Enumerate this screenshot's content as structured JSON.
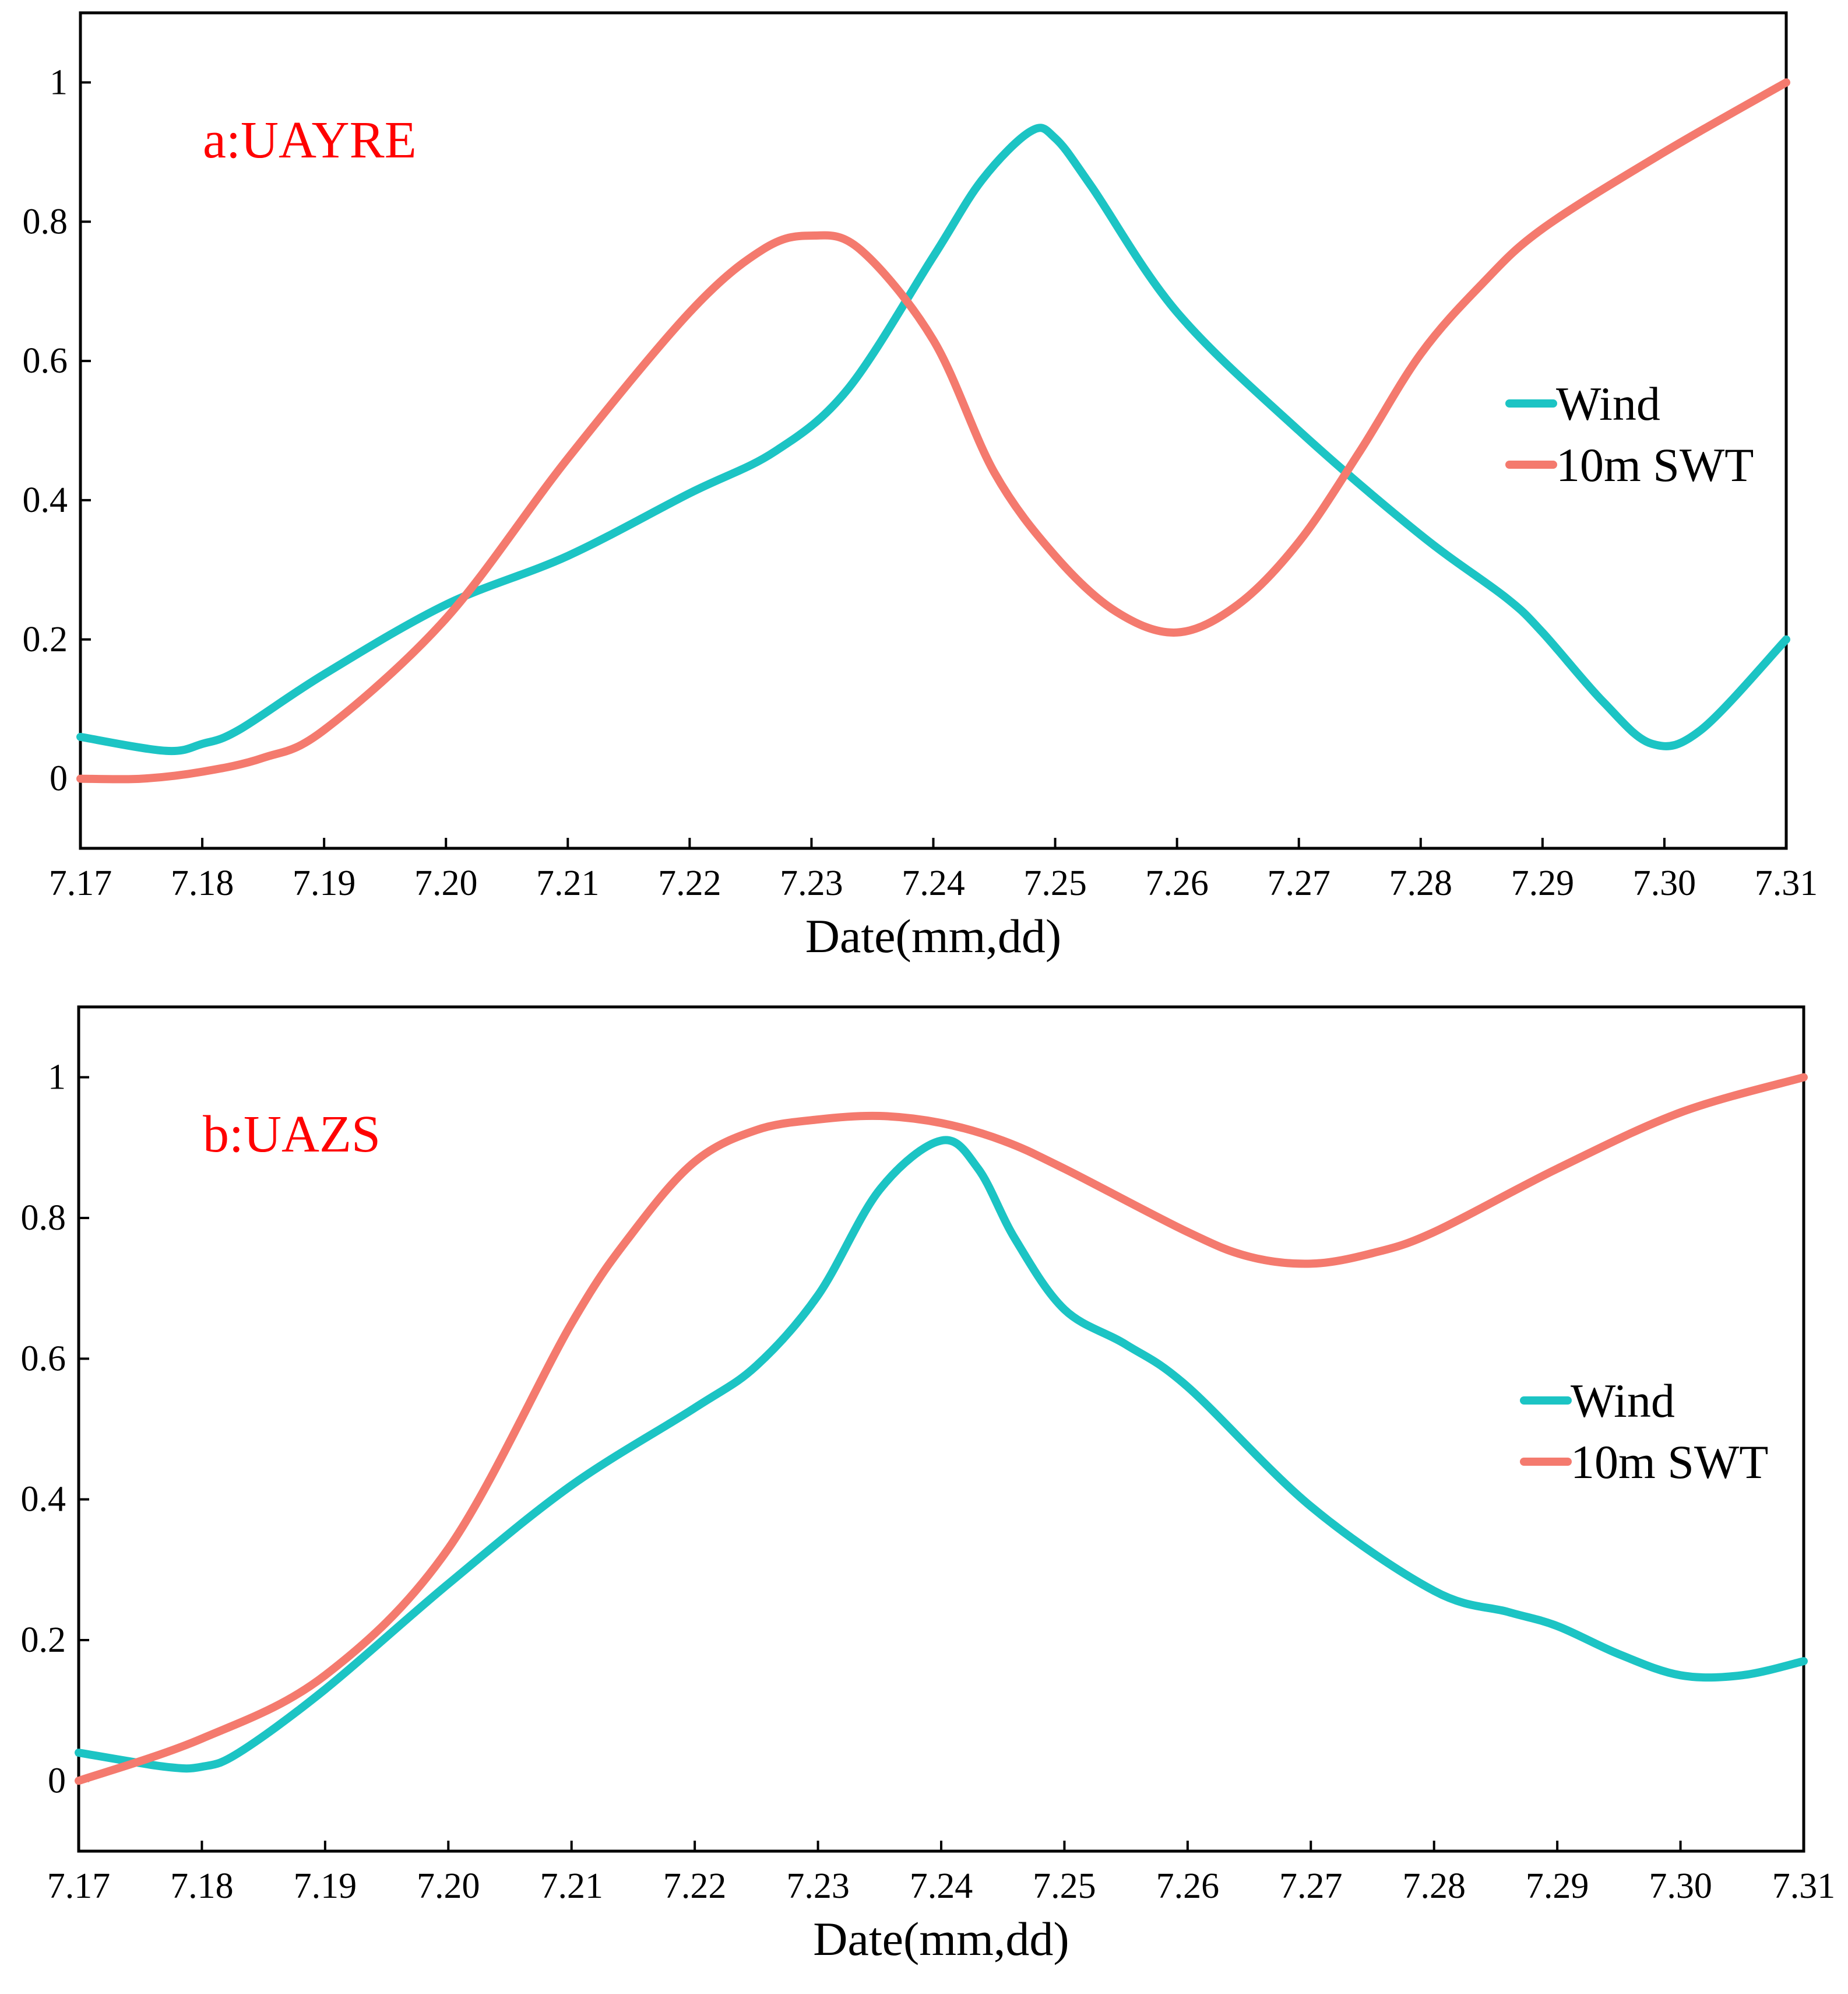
{
  "colors": {
    "wind": "#1CC4C4",
    "swt": "#F47A6E",
    "annotation": "#FF0000",
    "axis": "#000000"
  },
  "chart_data": [
    {
      "type": "line",
      "title": "a:UAYRE",
      "xlabel": "Date(mm,dd)",
      "ylabel": "",
      "categories": [
        "7.17",
        "7.18",
        "7.19",
        "7.20",
        "7.21",
        "7.22",
        "7.23",
        "7.24",
        "7.25",
        "7.26",
        "7.27",
        "7.28",
        "7.29",
        "7.30",
        "7.31"
      ],
      "x": [
        0,
        1,
        2,
        3,
        4,
        5,
        6,
        7,
        8,
        9,
        10,
        11,
        12,
        13,
        14
      ],
      "xlim": [
        0,
        14
      ],
      "ylim": [
        -0.1,
        1.1
      ],
      "yticks": [
        0,
        0.2,
        0.4,
        0.6,
        0.8,
        1
      ],
      "ytick_labels": [
        "0",
        "0.2",
        "0.4",
        "0.6",
        "0.8",
        "1"
      ],
      "legend": {
        "placement": "right",
        "entries": [
          "Wind",
          "10m SWT"
        ]
      },
      "series": [
        {
          "name": "Wind",
          "color": "#1CC4C4",
          "x": [
            0,
            0.7,
            1,
            1.3,
            2,
            3,
            4,
            5,
            5.7,
            6.3,
            7,
            7.4,
            7.8,
            8,
            8.3,
            9,
            10,
            11,
            11.7,
            12,
            12.5,
            12.9,
            13.3,
            14
          ],
          "y": [
            0.06,
            0.04,
            0.05,
            0.07,
            0.15,
            0.25,
            0.32,
            0.41,
            0.47,
            0.56,
            0.75,
            0.86,
            0.93,
            0.92,
            0.85,
            0.67,
            0.5,
            0.35,
            0.26,
            0.21,
            0.11,
            0.05,
            0.07,
            0.2
          ]
        },
        {
          "name": "10m SWT",
          "color": "#F47A6E",
          "x": [
            0,
            0.5,
            1,
            1.5,
            2,
            3,
            4,
            5,
            5.6,
            6,
            6.4,
            7,
            7.5,
            8,
            8.5,
            9,
            9.5,
            10,
            10.5,
            11,
            11.5,
            12,
            13,
            14
          ],
          "y": [
            0,
            0,
            0.01,
            0.03,
            0.07,
            0.23,
            0.46,
            0.67,
            0.76,
            0.78,
            0.76,
            0.63,
            0.44,
            0.32,
            0.24,
            0.21,
            0.25,
            0.34,
            0.47,
            0.61,
            0.71,
            0.79,
            0.9,
            1
          ]
        }
      ]
    },
    {
      "type": "line",
      "title": "b:UAZS",
      "xlabel": "Date(mm,dd)",
      "ylabel": "",
      "categories": [
        "7.17",
        "7.18",
        "7.19",
        "7.20",
        "7.21",
        "7.22",
        "7.23",
        "7.24",
        "7.25",
        "7.26",
        "7.27",
        "7.28",
        "7.29",
        "7.30",
        "7.31"
      ],
      "x": [
        0,
        1,
        2,
        3,
        4,
        5,
        6,
        7,
        8,
        9,
        10,
        11,
        12,
        13,
        14
      ],
      "xlim": [
        0,
        14
      ],
      "ylim": [
        -0.1,
        1.1
      ],
      "yticks": [
        0,
        0.2,
        0.4,
        0.6,
        0.8,
        1
      ],
      "ytick_labels": [
        "0",
        "0.2",
        "0.4",
        "0.6",
        "0.8",
        "1"
      ],
      "legend": {
        "placement": "right",
        "entries": [
          "Wind",
          "10m SWT"
        ]
      },
      "series": [
        {
          "name": "Wind",
          "color": "#1CC4C4",
          "x": [
            0,
            0.7,
            1,
            1.3,
            2,
            3,
            4,
            5,
            5.5,
            6,
            6.5,
            7,
            7.3,
            7.6,
            8,
            8.5,
            9,
            10,
            11,
            11.6,
            12,
            12.5,
            13,
            13.5,
            14
          ],
          "y": [
            0.04,
            0.02,
            0.02,
            0.04,
            0.13,
            0.28,
            0.42,
            0.53,
            0.59,
            0.69,
            0.84,
            0.91,
            0.87,
            0.77,
            0.67,
            0.62,
            0.56,
            0.39,
            0.27,
            0.24,
            0.22,
            0.18,
            0.15,
            0.15,
            0.17
          ]
        },
        {
          "name": "10m SWT",
          "color": "#F47A6E",
          "x": [
            0,
            1,
            2,
            3,
            4,
            4.5,
            5,
            5.5,
            6,
            6.5,
            7,
            7.5,
            8,
            9,
            9.5,
            10,
            10.5,
            11,
            12,
            13,
            14
          ],
          "y": [
            0,
            0.06,
            0.15,
            0.33,
            0.65,
            0.78,
            0.88,
            0.925,
            0.94,
            0.945,
            0.935,
            0.91,
            0.87,
            0.78,
            0.745,
            0.735,
            0.75,
            0.78,
            0.87,
            0.95,
            1
          ]
        }
      ]
    }
  ]
}
